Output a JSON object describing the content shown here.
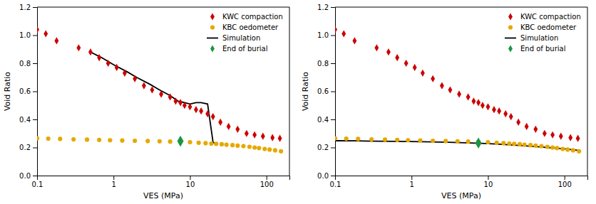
{
  "chart_data": [
    {
      "type": "scatter",
      "log": "x",
      "grid": false,
      "legend": "upper right",
      "xlabel": "VES (MPa)",
      "ylabel": "Void Ratio",
      "xlim": [
        0.1,
        200
      ],
      "xticks": [
        0.1,
        1,
        10,
        100
      ],
      "ylim": [
        0,
        1.2
      ],
      "yticks": [
        {
          "value": 0,
          "label": "0.0"
        },
        0.2,
        0.4,
        0.6,
        0.8,
        {
          "value": 1.0,
          "label": "1.0"
        },
        1.2
      ],
      "series": [
        {
          "name": "KWC compaction",
          "type": "scatter",
          "marker": "diamond",
          "color": "#cc0000",
          "x": [
            0.1,
            0.13,
            0.18,
            0.35,
            0.5,
            0.65,
            0.85,
            1.1,
            1.4,
            1.9,
            2.5,
            3.2,
            4.2,
            5.5,
            6.5,
            7.5,
            8.5,
            10.0,
            12.0,
            14.0,
            17.0,
            20.0,
            25.0,
            32.0,
            42.0,
            55.0,
            70.0,
            90.0,
            120.0,
            150.0
          ],
          "values": [
            1.04,
            1.01,
            0.96,
            0.91,
            0.88,
            0.84,
            0.8,
            0.77,
            0.73,
            0.69,
            0.64,
            0.61,
            0.58,
            0.56,
            0.53,
            0.52,
            0.5,
            0.49,
            0.47,
            0.46,
            0.44,
            0.42,
            0.38,
            0.35,
            0.33,
            0.3,
            0.29,
            0.28,
            0.27,
            0.265
          ]
        },
        {
          "name": "KBC oedometer",
          "type": "scatter",
          "marker": "circle",
          "color": "#e6a800",
          "x": [
            0.1,
            0.14,
            0.2,
            0.3,
            0.45,
            0.65,
            0.9,
            1.3,
            1.9,
            2.8,
            4.0,
            5.5,
            7.5,
            10.0,
            13.0,
            16.0,
            19.0,
            22.0,
            26.0,
            30.0,
            36.0,
            42.0,
            50.0,
            60.0,
            70.0,
            80.0,
            95.0,
            110.0,
            130.0,
            155.0
          ],
          "values": [
            0.265,
            0.263,
            0.261,
            0.258,
            0.256,
            0.254,
            0.252,
            0.25,
            0.248,
            0.246,
            0.244,
            0.242,
            0.24,
            0.238,
            0.234,
            0.231,
            0.228,
            0.226,
            0.223,
            0.22,
            0.217,
            0.213,
            0.21,
            0.205,
            0.2,
            0.196,
            0.19,
            0.185,
            0.18,
            0.173
          ]
        },
        {
          "name": "Simulation",
          "type": "line",
          "line_style": "solid",
          "color": "#000000",
          "x": [
            0.5,
            0.7,
            1.0,
            1.5,
            2.0,
            3.0,
            4.0,
            5.5,
            7.0,
            8.5,
            10.0,
            12.0,
            14.0,
            17.0,
            20.0,
            20.001,
            22.0
          ],
          "values": [
            0.88,
            0.84,
            0.79,
            0.74,
            0.7,
            0.65,
            0.61,
            0.57,
            0.53,
            0.52,
            0.51,
            0.52,
            0.52,
            0.51,
            0.24,
            0.235,
            0.23
          ]
        },
        {
          "name": "End of burial",
          "type": "scatter",
          "marker": "diamond",
          "color": "#1a9641",
          "x": [
            7.5
          ],
          "values": [
            0.245
          ]
        }
      ]
    },
    {
      "type": "scatter",
      "log": "x",
      "grid": false,
      "legend": "upper right",
      "xlabel": "VES (MPa)",
      "ylabel": "Void Ratio",
      "xlim": [
        0.1,
        200
      ],
      "xticks": [
        0.1,
        1,
        10,
        100
      ],
      "ylim": [
        0,
        1.2
      ],
      "yticks": [
        {
          "value": 0,
          "label": "0.0"
        },
        0.2,
        0.4,
        0.6,
        0.8,
        {
          "value": 1.0,
          "label": "1.0"
        },
        1.2
      ],
      "series": [
        {
          "name": "KWC compaction",
          "type": "scatter",
          "marker": "diamond",
          "color": "#cc0000",
          "x": [
            0.1,
            0.13,
            0.18,
            0.35,
            0.5,
            0.65,
            0.85,
            1.1,
            1.4,
            1.9,
            2.5,
            3.2,
            4.2,
            5.5,
            6.5,
            7.5,
            8.5,
            10.0,
            12.0,
            14.0,
            17.0,
            20.0,
            25.0,
            32.0,
            42.0,
            55.0,
            70.0,
            90.0,
            120.0,
            150.0
          ],
          "values": [
            1.04,
            1.01,
            0.96,
            0.91,
            0.88,
            0.84,
            0.8,
            0.77,
            0.73,
            0.69,
            0.64,
            0.61,
            0.58,
            0.56,
            0.53,
            0.52,
            0.5,
            0.49,
            0.47,
            0.46,
            0.44,
            0.42,
            0.38,
            0.35,
            0.33,
            0.3,
            0.29,
            0.28,
            0.27,
            0.265
          ]
        },
        {
          "name": "KBC oedometer",
          "type": "scatter",
          "marker": "circle",
          "color": "#e6a800",
          "x": [
            0.1,
            0.14,
            0.2,
            0.3,
            0.45,
            0.65,
            0.9,
            1.3,
            1.9,
            2.8,
            4.0,
            5.5,
            7.5,
            10.0,
            13.0,
            16.0,
            19.0,
            22.0,
            26.0,
            30.0,
            36.0,
            42.0,
            50.0,
            60.0,
            70.0,
            80.0,
            95.0,
            110.0,
            130.0,
            155.0
          ],
          "values": [
            0.265,
            0.263,
            0.261,
            0.258,
            0.256,
            0.254,
            0.252,
            0.25,
            0.248,
            0.246,
            0.244,
            0.242,
            0.24,
            0.238,
            0.234,
            0.231,
            0.228,
            0.226,
            0.223,
            0.22,
            0.217,
            0.213,
            0.21,
            0.205,
            0.2,
            0.196,
            0.19,
            0.185,
            0.18,
            0.173
          ]
        },
        {
          "name": "Simulation",
          "type": "line",
          "line_style": "solid",
          "color": "#000000",
          "x": [
            0.1,
            0.2,
            0.35,
            0.6,
            1.0,
            1.8,
            3.0,
            5.0,
            8.0,
            13.0,
            20.0,
            35.0,
            60.0,
            100.0,
            160.0
          ],
          "values": [
            0.248,
            0.247,
            0.245,
            0.244,
            0.242,
            0.24,
            0.237,
            0.234,
            0.23,
            0.225,
            0.218,
            0.21,
            0.2,
            0.19,
            0.178
          ]
        },
        {
          "name": "End of burial",
          "type": "scatter",
          "marker": "diamond",
          "color": "#1a9641",
          "x": [
            7.5
          ],
          "values": [
            0.232
          ]
        }
      ]
    }
  ]
}
